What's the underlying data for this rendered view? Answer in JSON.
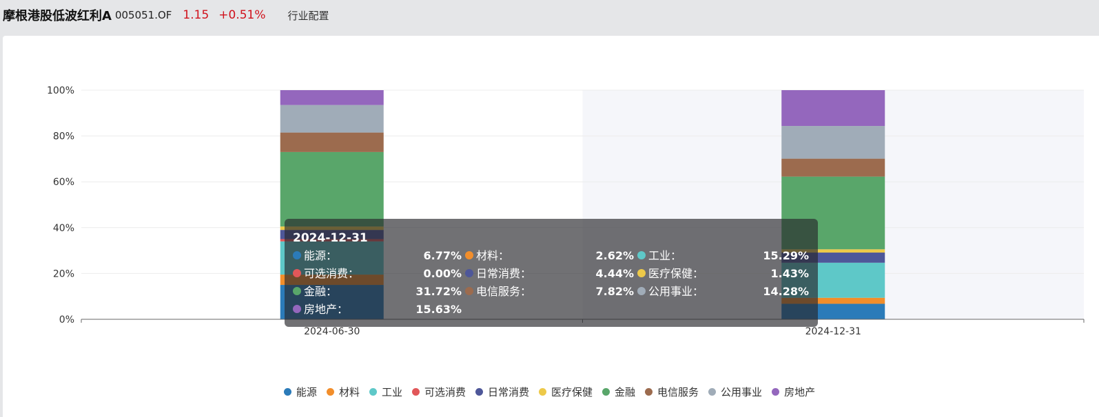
{
  "header": {
    "fund_name": "摩根港股低波红利A",
    "fund_code": "005051.OF",
    "nav": "1.15",
    "change": "+0.51%",
    "tab_label": "行业配置"
  },
  "colors": {
    "up": "#d0111b"
  },
  "chart_data": {
    "type": "bar",
    "stacked": true,
    "normalized": true,
    "title": "",
    "xlabel": "",
    "ylabel": "",
    "ylim": [
      0,
      100
    ],
    "yticks": [
      "0%",
      "20%",
      "40%",
      "60%",
      "80%",
      "100%"
    ],
    "categories": [
      "2024-06-30",
      "2024-12-31"
    ],
    "highlighted_category": "2024-12-31",
    "legend_position": "bottom",
    "series": [
      {
        "name": "能源",
        "color": "#2b7bb9",
        "values": [
          15.0,
          6.77
        ]
      },
      {
        "name": "材料",
        "color": "#f28e2b",
        "values": [
          4.5,
          2.62
        ]
      },
      {
        "name": "工业",
        "color": "#5ec8c8",
        "values": [
          14.5,
          15.29
        ]
      },
      {
        "name": "可选消费",
        "color": "#e15759",
        "values": [
          1.0,
          0.0
        ]
      },
      {
        "name": "日常消费",
        "color": "#4e5799",
        "values": [
          4.0,
          4.44
        ]
      },
      {
        "name": "医疗保健",
        "color": "#edc949",
        "values": [
          1.5,
          1.43
        ]
      },
      {
        "name": "金融",
        "color": "#59a66a",
        "values": [
          32.5,
          31.72
        ]
      },
      {
        "name": "电信服务",
        "color": "#9c6b4e",
        "values": [
          8.5,
          7.82
        ]
      },
      {
        "name": "公用事业",
        "color": "#a0acb8",
        "values": [
          12.0,
          14.28
        ]
      },
      {
        "name": "房地产",
        "color": "#9467bd",
        "values": [
          6.5,
          15.63
        ]
      }
    ],
    "tooltip": {
      "title": "2024-12-31",
      "items": [
        {
          "label": "能源：",
          "value": "6.77%"
        },
        {
          "label": "材料：",
          "value": "2.62%"
        },
        {
          "label": "工业：",
          "value": "15.29%"
        },
        {
          "label": "可选消费：",
          "value": "0.00%"
        },
        {
          "label": "日常消费：",
          "value": "4.44%"
        },
        {
          "label": "医疗保健：",
          "value": "1.43%"
        },
        {
          "label": "金融：",
          "value": "31.72%"
        },
        {
          "label": "电信服务：",
          "value": "7.82%"
        },
        {
          "label": "公用事业：",
          "value": "14.28%"
        },
        {
          "label": "房地产：",
          "value": "15.63%"
        }
      ]
    }
  }
}
